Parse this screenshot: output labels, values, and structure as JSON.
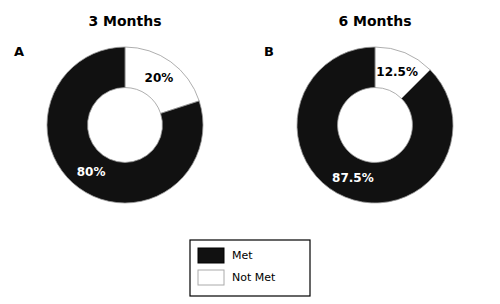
{
  "chart_data": [
    {
      "type": "pie",
      "title": "3 Months",
      "annotations": [
        "A"
      ],
      "categories": [
        "Not Met",
        "Met"
      ],
      "values": [
        20,
        80
      ],
      "value_labels": [
        "20%",
        "80%"
      ],
      "colors": [
        "#ffffff",
        "#111111"
      ],
      "data_labels": true,
      "legend": "bottom"
    },
    {
      "type": "pie",
      "title": "6 Months",
      "annotations": [
        "B"
      ],
      "categories": [
        "Not Met",
        "Met"
      ],
      "values": [
        12.5,
        87.5
      ],
      "value_labels": [
        "12.5%",
        "87.5%"
      ],
      "colors": [
        "#ffffff",
        "#111111"
      ],
      "data_labels": true,
      "legend": "bottom"
    }
  ]
}
